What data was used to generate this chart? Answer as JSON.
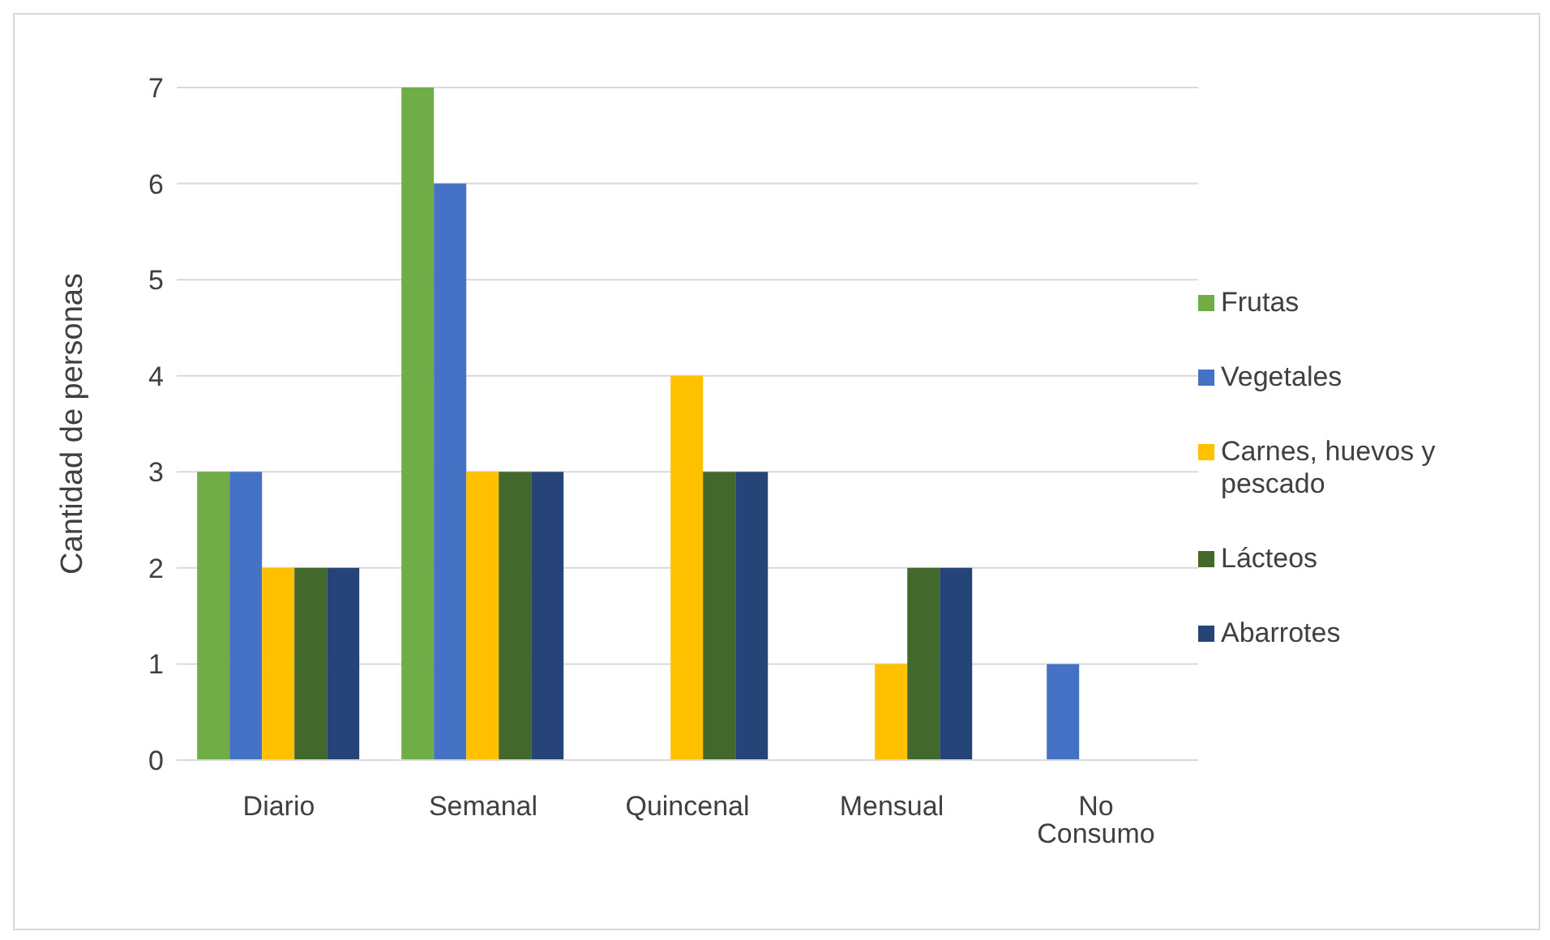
{
  "chart_data": {
    "type": "bar",
    "ylabel": "Cantidad de personas",
    "categories": [
      "Diario",
      "Semanal",
      "Quincenal",
      "Mensual",
      "No Consumo"
    ],
    "series": [
      {
        "name": "Frutas",
        "color": "#70ad47",
        "values": [
          3,
          7,
          0,
          0,
          0
        ]
      },
      {
        "name": "Vegetales",
        "color": "#4472c4",
        "values": [
          3,
          6,
          0,
          0,
          1
        ]
      },
      {
        "name": "Carnes, huevos y pescado",
        "color": "#ffc000",
        "values": [
          2,
          3,
          4,
          1,
          0
        ]
      },
      {
        "name": "Lácteos",
        "color": "#43682b",
        "values": [
          2,
          3,
          3,
          2,
          0
        ]
      },
      {
        "name": "Abarrotes",
        "color": "#264478",
        "values": [
          2,
          3,
          3,
          2,
          0
        ]
      }
    ],
    "ylim": [
      0,
      7
    ],
    "yticks": [
      0,
      1,
      2,
      3,
      4,
      5,
      6,
      7
    ],
    "grid": "y",
    "legend": "right"
  }
}
